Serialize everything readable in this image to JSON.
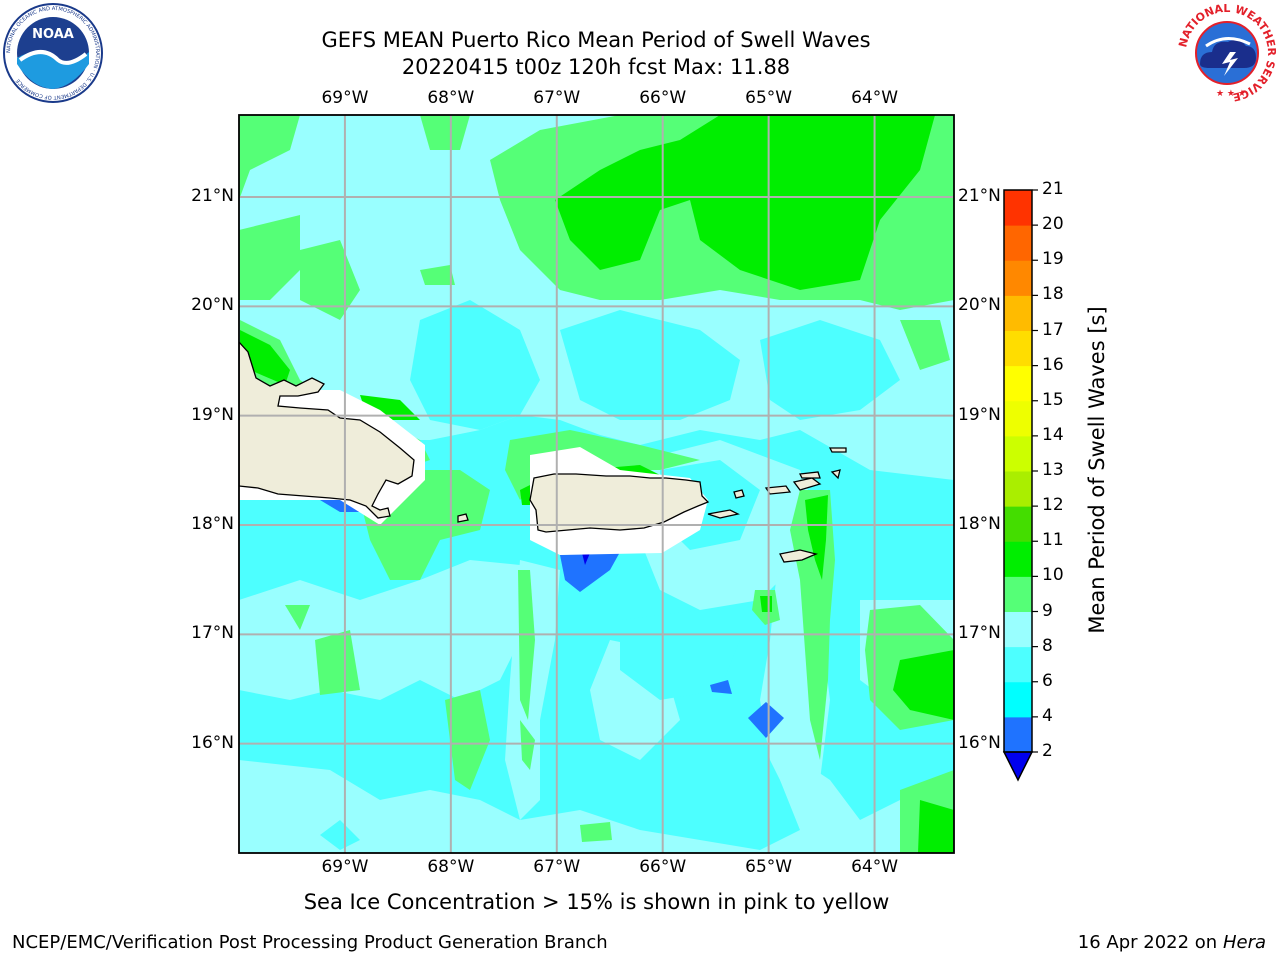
{
  "title": {
    "line1": "GEFS MEAN Puerto Rico Mean Period of Swell Waves",
    "line2": "20220415 t00z 120h fcst   Max: 11.88"
  },
  "map": {
    "lon_labels": [
      "69°W",
      "68°W",
      "67°W",
      "66°W",
      "65°W",
      "64°W"
    ],
    "lat_labels": [
      "21°N",
      "20°N",
      "19°N",
      "18°N",
      "17°N",
      "16°N"
    ],
    "lon_values": [
      -69,
      -68,
      -67,
      -66,
      -65,
      -64
    ],
    "lat_values": [
      21,
      20,
      19,
      18,
      17,
      16
    ],
    "lon_range": [
      -70.0,
      -63.25
    ],
    "lat_range": [
      15.0,
      21.75
    ],
    "grid": true,
    "land_color": "#efedda",
    "ocean_base_color": "#4dffff"
  },
  "colorbar": {
    "label": "Mean Period of Swell Waves [s]",
    "tick_labels": [
      "2",
      "4",
      "6",
      "8",
      "9",
      "10",
      "11",
      "12",
      "13",
      "14",
      "15",
      "16",
      "17",
      "18",
      "19",
      "20",
      "21"
    ],
    "levels": [
      2,
      4,
      6,
      8,
      9,
      10,
      11,
      12,
      13,
      14,
      15,
      16,
      17,
      18,
      19,
      20,
      21
    ],
    "colors": [
      "#1f73ff",
      "#00ffff",
      "#4dffff",
      "#99ffff",
      "#55ff77",
      "#00ee00",
      "#44dd00",
      "#aaee00",
      "#ccff00",
      "#eeff00",
      "#ffff00",
      "#ffdd00",
      "#ffbb00",
      "#ff8800",
      "#ff6600",
      "#ff3300",
      "#ff0000"
    ],
    "under_color": "#0000ee",
    "extend": "min"
  },
  "caption": "Sea Ice Concentration > 15% is shown in pink to yellow",
  "footer": {
    "left": "NCEP/EMC/Verification Post Processing Product Generation Branch",
    "date": "16 Apr 2022 on ",
    "machine": "Hera"
  },
  "logos": {
    "noaa": {
      "text": "NOAA",
      "ring_text": "NATIONAL OCEANIC AND ATMOSPHERIC ADMINISTRATION · U.S. DEPARTMENT OF COMMERCE"
    },
    "nws": {
      "ring_text": "NATIONAL WEATHER SERVICE"
    }
  }
}
